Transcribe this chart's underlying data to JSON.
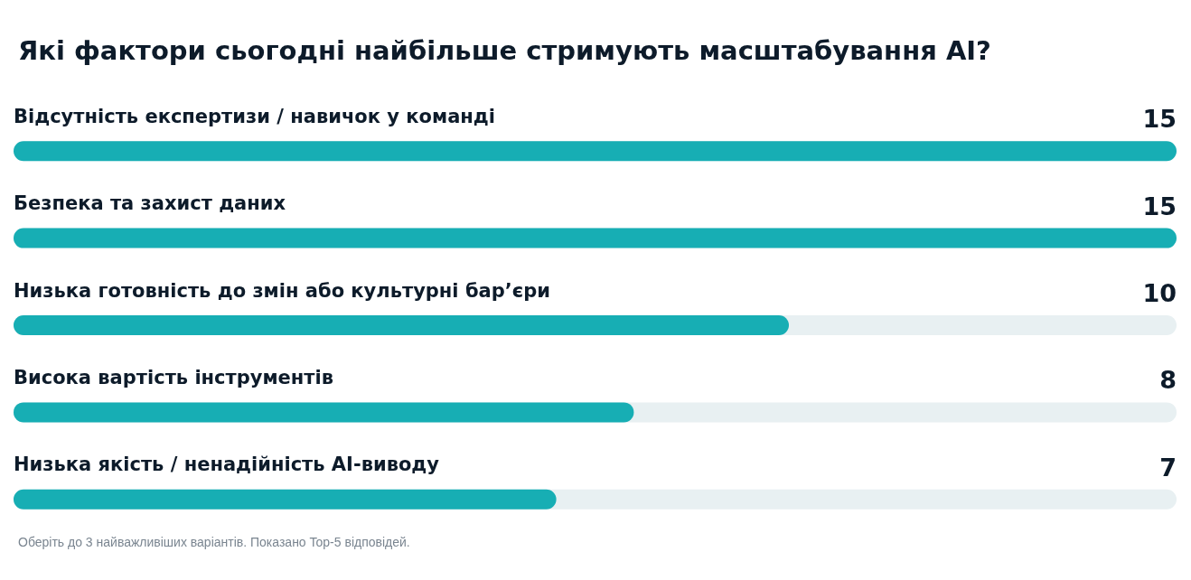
{
  "chart_data": {
    "type": "bar",
    "orientation": "horizontal",
    "title": "Які фактори сьогодні найбільше стримують масштабування AI?",
    "categories": [
      "Відсутність експертизи / навичок у команді",
      "Безпека та захист даних",
      "Низька готовність до змін або культурні бар’єри",
      "Висока вартість інструментів",
      "Низька якість / ненадійність AI-виводу"
    ],
    "values": [
      15,
      15,
      10,
      8,
      7
    ],
    "color": "#17aeb4",
    "xlim": [
      0,
      15
    ],
    "tick_labels": "y",
    "data_labels": true,
    "annotations": [
      "Оберіть до 3 найважливіших варіантів. Показано Top-5 відповідей."
    ]
  }
}
